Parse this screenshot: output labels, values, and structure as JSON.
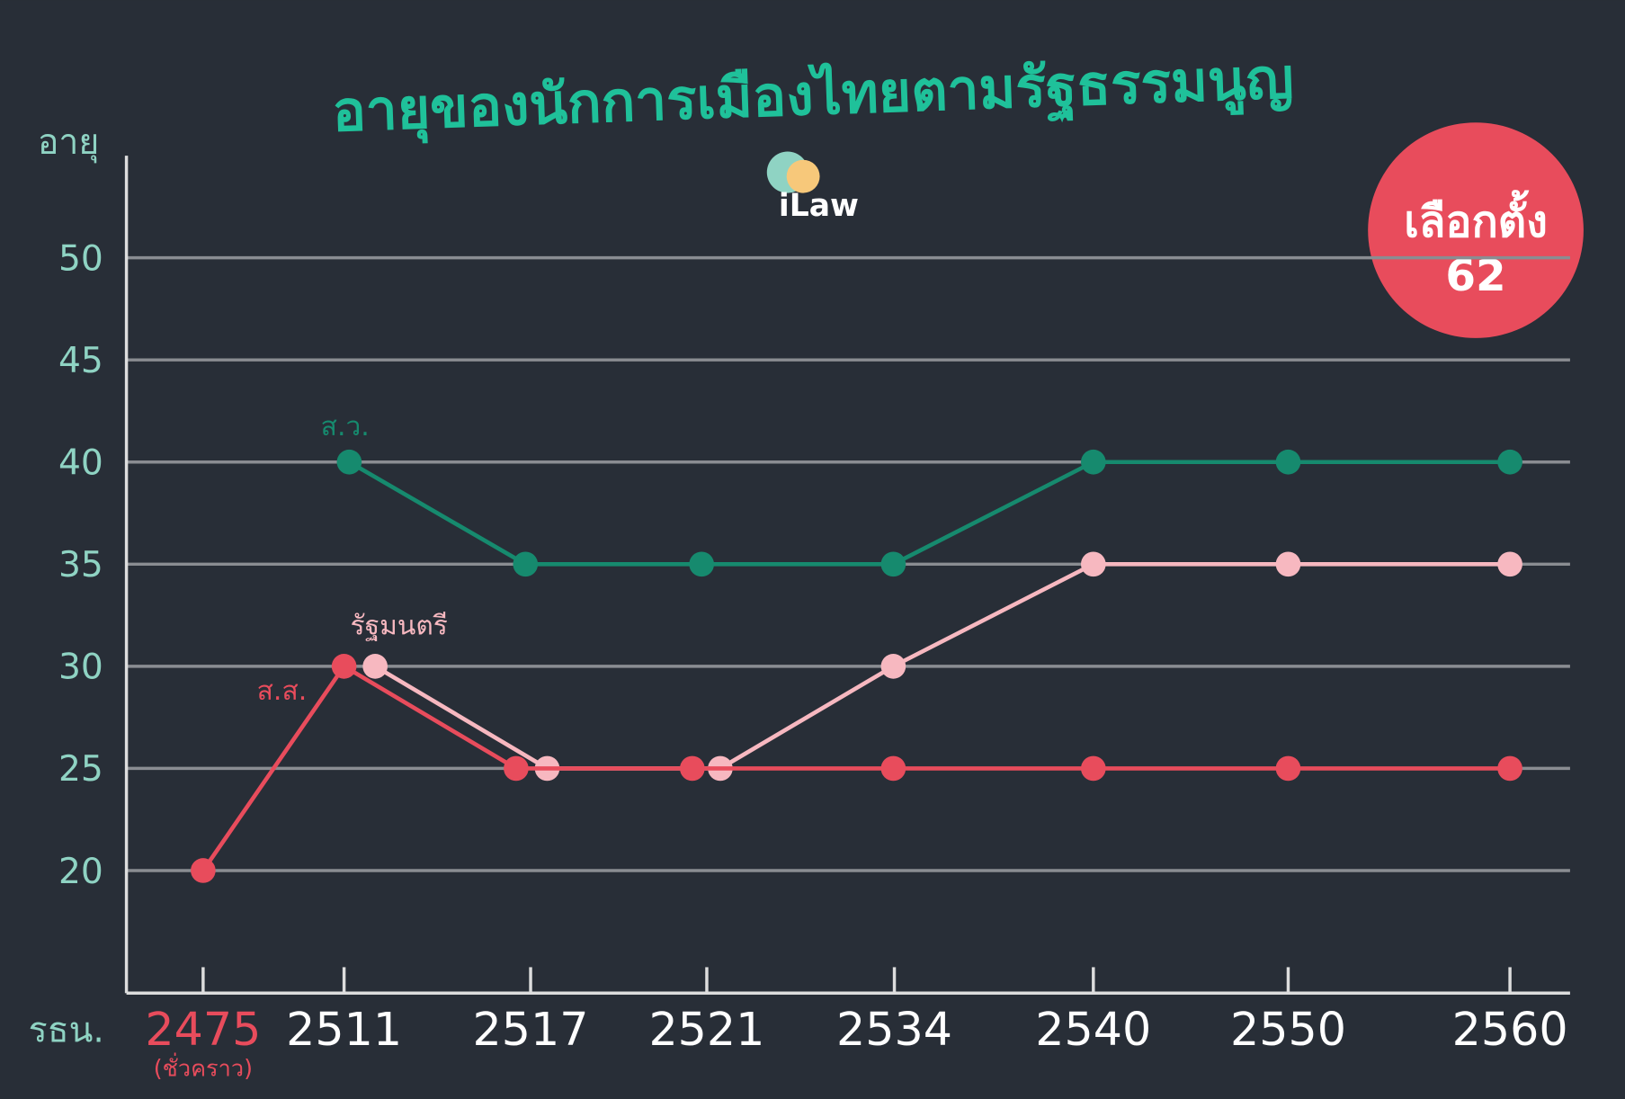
{
  "chart_data": {
    "type": "line",
    "title": "อายุของนักการเมืองไทยตามรัฐธรรมนูญ",
    "y_label": "อายุ",
    "x_label": "รธน.",
    "category_note": "(ชั่วคราว)",
    "logo": "iLaw",
    "badge": [
      "เลือกตั้ง",
      "62"
    ],
    "categories": [
      "2475",
      "2511",
      "2517",
      "2521",
      "2534",
      "2540",
      "2550",
      "2560"
    ],
    "series": [
      {
        "name": "ส.ว.",
        "color": "#168a6e",
        "values": [
          null,
          40,
          35,
          35,
          35,
          40,
          40,
          40
        ]
      },
      {
        "name": "รัฐมนตรี",
        "color": "#f7b8c0",
        "values": [
          null,
          30,
          25,
          25,
          30,
          35,
          35,
          35
        ]
      },
      {
        "name": "ส.ส.",
        "color": "#e84c5c",
        "values": [
          20,
          30,
          25,
          25,
          25,
          25,
          25,
          25
        ]
      }
    ],
    "ylim": [
      14,
      55
    ],
    "yticks": [
      20,
      25,
      30,
      35,
      40,
      45,
      50
    ],
    "grid": true
  }
}
